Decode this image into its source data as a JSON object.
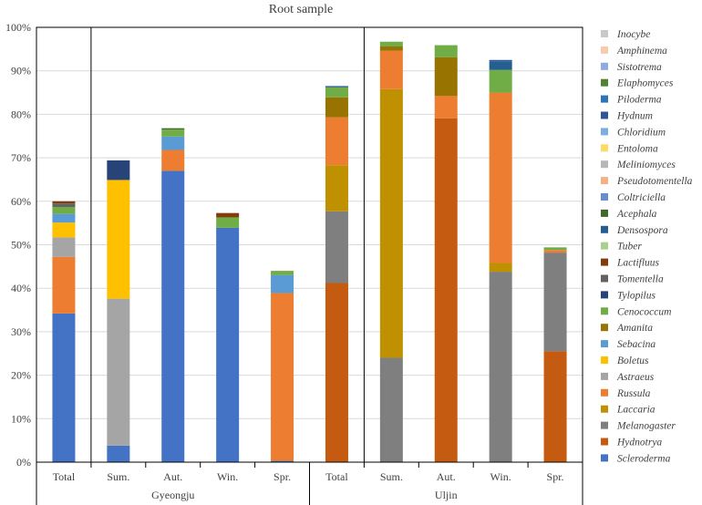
{
  "chart_data": {
    "type": "bar",
    "stacked": true,
    "title": "Root sample",
    "xlabel": "",
    "ylabel": "",
    "ylim": [
      0,
      100
    ],
    "y_tick_labels": [
      "0%",
      "10%",
      "20%",
      "30%",
      "40%",
      "50%",
      "60%",
      "70%",
      "80%",
      "90%",
      "100%"
    ],
    "categories": [
      "Total",
      "Sum.",
      "Aut.",
      "Win.",
      "Spr.",
      "Total",
      "Sum.",
      "Aut.",
      "Win.",
      "Spr."
    ],
    "groups": [
      {
        "name": "Gyeongju",
        "categories": [
          0,
          1,
          2,
          3,
          4
        ]
      },
      {
        "name": "Uljin",
        "categories": [
          5,
          6,
          7,
          8,
          9
        ]
      }
    ],
    "legend_position": "right",
    "series": [
      {
        "name": "Scleroderma",
        "color": "#4472C4",
        "values": [
          34.2,
          3.8,
          67.0,
          53.9,
          0.3,
          0,
          0,
          0,
          0,
          0
        ]
      },
      {
        "name": "Hydnotrya",
        "color": "#C55A11",
        "values": [
          0,
          0,
          0,
          0,
          0,
          41.2,
          0,
          79.1,
          0,
          25.5
        ]
      },
      {
        "name": "Melanogaster",
        "color": "#7F7F7F",
        "values": [
          0,
          0,
          0,
          0,
          0,
          16.5,
          24.0,
          0,
          43.8,
          22.7
        ]
      },
      {
        "name": "Laccaria",
        "color": "#BF9000",
        "values": [
          0,
          0,
          0,
          0,
          0,
          10.6,
          61.8,
          0,
          2.0,
          0
        ]
      },
      {
        "name": "Russula",
        "color": "#ED7D31",
        "values": [
          13.0,
          0,
          4.8,
          0,
          38.6,
          11.0,
          8.8,
          5.1,
          39.2,
          0.6
        ]
      },
      {
        "name": "Astraeus",
        "color": "#A5A5A5",
        "values": [
          4.5,
          33.8,
          0,
          0,
          0,
          0,
          0,
          0,
          0,
          0
        ]
      },
      {
        "name": "Boletus",
        "color": "#FFC000",
        "values": [
          3.4,
          27.3,
          0,
          0,
          0,
          0,
          0,
          0,
          0,
          0
        ]
      },
      {
        "name": "Sebacina",
        "color": "#5B9BD5",
        "values": [
          2.0,
          0,
          3.1,
          0,
          4.1,
          0,
          0,
          0,
          0,
          0
        ]
      },
      {
        "name": "Amanita",
        "color": "#997300",
        "values": [
          0,
          0,
          0,
          0,
          0,
          4.6,
          1.0,
          8.9,
          0,
          0
        ]
      },
      {
        "name": "Cenococcum",
        "color": "#70AD47",
        "values": [
          1.6,
          0,
          1.6,
          2.4,
          1.0,
          2.3,
          1.1,
          2.8,
          5.2,
          0.6
        ]
      },
      {
        "name": "Tylopilus",
        "color": "#264478",
        "values": [
          0,
          4.5,
          0,
          0,
          0,
          0,
          0,
          0,
          0,
          0
        ]
      },
      {
        "name": "Tomentella",
        "color": "#636363",
        "values": [
          0.8,
          0,
          0,
          0,
          0,
          0,
          0,
          0,
          0,
          0
        ]
      },
      {
        "name": "Lactifluus",
        "color": "#843C0C",
        "values": [
          0.5,
          0,
          0,
          1.0,
          0,
          0,
          0,
          0,
          0,
          0
        ]
      },
      {
        "name": "Tuber",
        "color": "#A9D18E",
        "values": [
          0,
          0,
          0,
          0,
          0,
          0,
          0,
          0,
          0,
          0
        ]
      },
      {
        "name": "Densospora",
        "color": "#255E91",
        "values": [
          0,
          0,
          0,
          0,
          0,
          0.3,
          0,
          0,
          2.0,
          0
        ]
      },
      {
        "name": "Acephala",
        "color": "#43682B",
        "values": [
          0,
          0,
          0.3,
          0,
          0,
          0,
          0,
          0,
          0,
          0
        ]
      },
      {
        "name": "Coltriciella",
        "color": "#698ED0",
        "values": [
          0,
          0,
          0,
          0,
          0,
          0,
          0,
          0,
          0,
          0
        ]
      },
      {
        "name": "Pseudotomentella",
        "color": "#F4B183",
        "values": [
          0,
          0,
          0,
          0,
          0,
          0,
          0,
          0,
          0,
          0
        ]
      },
      {
        "name": "Meliniomyces",
        "color": "#B7B7B7",
        "values": [
          0,
          0,
          0,
          0,
          0,
          0,
          0,
          0,
          0,
          0
        ]
      },
      {
        "name": "Entoloma",
        "color": "#FFD966",
        "values": [
          0,
          0,
          0,
          0,
          0,
          0,
          0,
          0,
          0,
          0
        ]
      },
      {
        "name": "Chloridium",
        "color": "#7CAFDD",
        "values": [
          0,
          0,
          0,
          0,
          0,
          0,
          0,
          0,
          0,
          0
        ]
      },
      {
        "name": "Hydnum",
        "color": "#2F5597",
        "values": [
          0,
          0,
          0,
          0,
          0,
          0,
          0,
          0,
          0.3,
          0
        ]
      },
      {
        "name": "Piloderma",
        "color": "#2E75B6",
        "values": [
          0,
          0,
          0,
          0,
          0,
          0,
          0,
          0,
          0,
          0
        ]
      },
      {
        "name": "Elaphomyces",
        "color": "#548235",
        "values": [
          0,
          0,
          0,
          0,
          0,
          0,
          0,
          0,
          0,
          0
        ]
      },
      {
        "name": "Sistotrema",
        "color": "#8FAADC",
        "values": [
          0,
          0,
          0,
          0,
          0,
          0,
          0,
          0,
          0,
          0
        ]
      },
      {
        "name": "Amphinema",
        "color": "#F8CBAD",
        "values": [
          0,
          0,
          0,
          0,
          0,
          0,
          0,
          0,
          0,
          0
        ]
      },
      {
        "name": "Inocybe",
        "color": "#C9C9C9",
        "values": [
          0,
          0,
          0,
          0,
          0,
          0,
          0,
          0,
          0,
          0
        ]
      }
    ]
  }
}
